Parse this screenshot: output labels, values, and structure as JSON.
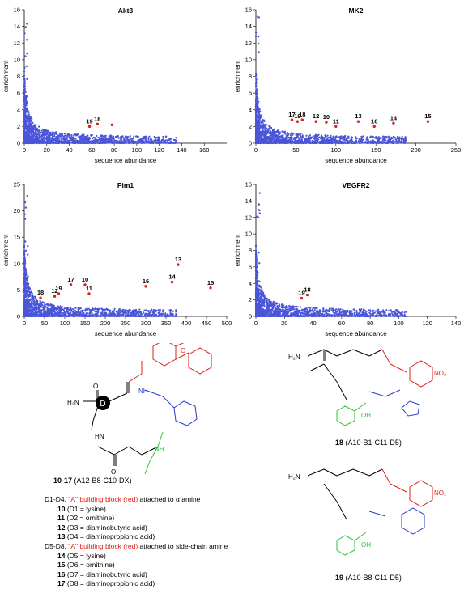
{
  "chart_data": [
    {
      "type": "scatter",
      "title": "Akt3",
      "xlabel": "sequence abundance",
      "ylabel": "enrichment",
      "xlim": [
        0,
        180
      ],
      "ylim": [
        0,
        16
      ],
      "xticks": [
        0,
        20,
        40,
        60,
        80,
        100,
        120,
        140,
        160
      ],
      "yticks": [
        0,
        2,
        4,
        6,
        8,
        10,
        12,
        14,
        16
      ],
      "grid": false,
      "background_color": "#4a55d8",
      "highlight_color": "#e0201b",
      "highlights": [
        {
          "label": "19",
          "x": 58,
          "y": 2.0
        },
        {
          "label": "18",
          "x": 65,
          "y": 2.3
        },
        {
          "label": "",
          "x": 78,
          "y": 2.2
        }
      ]
    },
    {
      "type": "scatter",
      "title": "MK2",
      "xlabel": "sequence abundance",
      "ylabel": "enrichment",
      "xlim": [
        0,
        250
      ],
      "ylim": [
        0,
        16
      ],
      "xticks": [
        0,
        50,
        100,
        150,
        200,
        250
      ],
      "yticks": [
        0,
        2,
        4,
        6,
        8,
        10,
        12,
        14,
        16
      ],
      "grid": false,
      "background_color": "#4a55d8",
      "highlight_color": "#e0201b",
      "highlights": [
        {
          "label": "17",
          "x": 45,
          "y": 2.8
        },
        {
          "label": "19",
          "x": 52,
          "y": 2.6
        },
        {
          "label": "18",
          "x": 58,
          "y": 2.8
        },
        {
          "label": "12",
          "x": 75,
          "y": 2.6
        },
        {
          "label": "10",
          "x": 88,
          "y": 2.5
        },
        {
          "label": "11",
          "x": 100,
          "y": 2.0
        },
        {
          "label": "13",
          "x": 128,
          "y": 2.6
        },
        {
          "label": "16",
          "x": 148,
          "y": 2.0
        },
        {
          "label": "14",
          "x": 172,
          "y": 2.4
        },
        {
          "label": "15",
          "x": 215,
          "y": 2.6
        }
      ]
    },
    {
      "type": "scatter",
      "title": "Pim1",
      "xlabel": "sequence abundance",
      "ylabel": "enrichment",
      "xlim": [
        0,
        500
      ],
      "ylim": [
        0,
        25
      ],
      "xticks": [
        0,
        50,
        100,
        150,
        200,
        250,
        300,
        350,
        400,
        450,
        500
      ],
      "yticks": [
        0,
        5,
        10,
        15,
        20,
        25
      ],
      "grid": false,
      "background_color": "#4a55d8",
      "highlight_color": "#e0201b",
      "highlights": [
        {
          "label": "18",
          "x": 40,
          "y": 3.5
        },
        {
          "label": "12",
          "x": 75,
          "y": 3.8
        },
        {
          "label": "19",
          "x": 85,
          "y": 4.3
        },
        {
          "label": "17",
          "x": 115,
          "y": 6.0
        },
        {
          "label": "10",
          "x": 150,
          "y": 6.0
        },
        {
          "label": "11",
          "x": 160,
          "y": 4.3
        },
        {
          "label": "16",
          "x": 300,
          "y": 5.7
        },
        {
          "label": "14",
          "x": 365,
          "y": 6.5
        },
        {
          "label": "13",
          "x": 380,
          "y": 9.8
        },
        {
          "label": "15",
          "x": 460,
          "y": 5.4
        }
      ]
    },
    {
      "type": "scatter",
      "title": "VEGFR2",
      "xlabel": "sequence abundance",
      "ylabel": "enrichment",
      "xlim": [
        0,
        140
      ],
      "ylim": [
        0,
        16
      ],
      "xticks": [
        0,
        20,
        40,
        60,
        80,
        100,
        120,
        140
      ],
      "yticks": [
        0,
        2,
        4,
        6,
        8,
        10,
        12,
        14,
        16
      ],
      "grid": false,
      "background_color": "#4a55d8",
      "highlight_color": "#e0201b",
      "highlights": [
        {
          "label": "19",
          "x": 32,
          "y": 2.2
        },
        {
          "label": "18",
          "x": 36,
          "y": 2.6
        }
      ]
    }
  ],
  "structures": {
    "left_label_bold": "10-17",
    "left_label_rest": " (A12-B8-C10-DX)",
    "top_right_label_bold": "18",
    "top_right_label_rest": " (A10-B1-C11-D5)",
    "bottom_right_label_bold": "19",
    "bottom_right_label_rest": " (A10-B8-C11-D5)",
    "center_atom": "D",
    "nh2": "H₂N",
    "no2": "NO₂",
    "o": "O",
    "nh": "NH",
    "hn": "HN",
    "n_h": "N",
    "oh": "OH"
  },
  "legend": {
    "group1": {
      "prefix": "D1-D4. ",
      "red": "\"A\" building block (red)",
      "suffix": " attached to α amine",
      "rows": [
        {
          "num": "10",
          "text": " (D1 = lysine)"
        },
        {
          "num": "11",
          "text": " (D2 = ornithine)"
        },
        {
          "num": "12",
          "text": " (D3 = diaminobutyric acid)"
        },
        {
          "num": "13",
          "text": " (D4 = diaminopropionic acid)"
        }
      ]
    },
    "group2": {
      "prefix": "D5-D8. ",
      "red": "\"A\" building block (red)",
      "suffix": " attached to side-chain amine",
      "rows": [
        {
          "num": "14",
          "text": " (D5 = lysine)"
        },
        {
          "num": "15",
          "text": " (D6 = ornithine)"
        },
        {
          "num": "16",
          "text": " (D7 = diaminobutyric acid)"
        },
        {
          "num": "17",
          "text": " (D8 = diaminopropionic acid)"
        }
      ]
    }
  }
}
